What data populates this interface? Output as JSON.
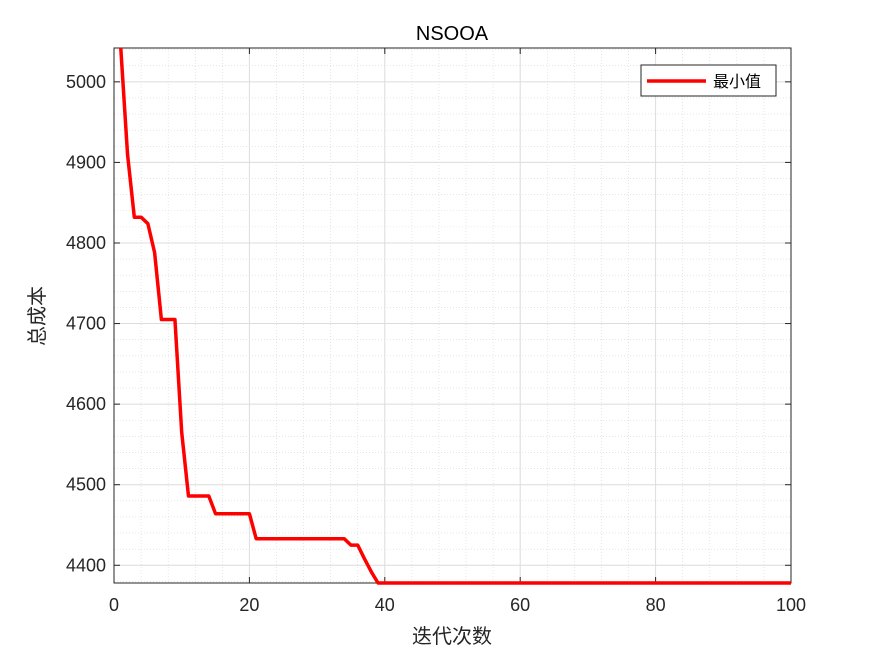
{
  "chart_data": {
    "type": "line",
    "title": "NSOOA",
    "xlabel": "迭代次数",
    "ylabel": "总成本",
    "xlim": [
      0,
      100
    ],
    "ylim": [
      4378,
      5042
    ],
    "xticks": [
      0,
      20,
      40,
      60,
      80,
      100
    ],
    "yticks": [
      4400,
      4500,
      4600,
      4700,
      4800,
      4900,
      5000
    ],
    "grid": true,
    "minor_grid": true,
    "legend_position": "top-right",
    "series": [
      {
        "name": "最小值",
        "color": "#ff0000",
        "x": [
          1,
          2,
          3,
          4,
          5,
          6,
          7,
          8,
          9,
          10,
          11,
          12,
          13,
          14,
          15,
          16,
          17,
          18,
          19,
          20,
          21,
          22,
          23,
          24,
          25,
          26,
          27,
          28,
          29,
          30,
          31,
          32,
          33,
          34,
          35,
          36,
          37,
          38,
          39,
          40,
          50,
          60,
          70,
          80,
          90,
          100
        ],
        "y": [
          5042,
          4910,
          4832,
          4832,
          4824,
          4788,
          4705,
          4705,
          4705,
          4565,
          4486,
          4486,
          4486,
          4486,
          4464,
          4464,
          4464,
          4464,
          4464,
          4464,
          4433,
          4433,
          4433,
          4433,
          4433,
          4433,
          4433,
          4433,
          4433,
          4433,
          4433,
          4433,
          4433,
          4433,
          4425,
          4425,
          4408,
          4392,
          4378,
          4378,
          4378,
          4378,
          4378,
          4378,
          4378,
          4378
        ]
      }
    ]
  }
}
